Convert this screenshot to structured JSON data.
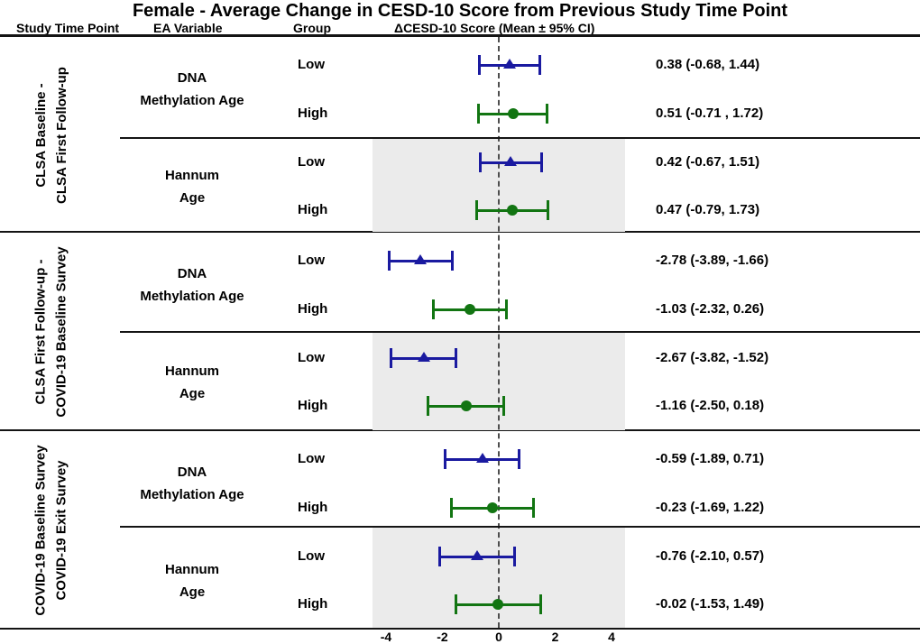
{
  "chart_data": {
    "type": "forest",
    "title": "Female - Average Change in CESD-10 Score from Previous Study Time Point",
    "column_headers": [
      "Study Time Point",
      "EA Variable",
      "Group",
      "ΔCESD-10 Score (Mean ± 95% CI)"
    ],
    "x_ticks": [
      -4,
      -2,
      0,
      2,
      4
    ],
    "xlim": [
      -4.5,
      4.5
    ],
    "zero_reference": 0,
    "grid": false,
    "marker_legend": {
      "Low": "triangle",
      "High": "circle"
    },
    "colors": {
      "low_marker": "#1a1aa0",
      "high_marker": "#127512",
      "hannum_shade": "#ebebeb"
    },
    "sections": [
      {
        "study_time_point": [
          "CLSA Baseline -",
          "CLSA First Follow-up"
        ],
        "ea_groups": [
          {
            "ea_variable": [
              "DNA",
              "Methylation Age"
            ],
            "shaded": false,
            "rows": [
              {
                "group": "Low",
                "mean": 0.38,
                "ci": [
                  -0.68,
                  1.44
                ],
                "text": "0.38 (-0.68, 1.44)"
              },
              {
                "group": "High",
                "mean": 0.51,
                "ci": [
                  -0.71,
                  1.72
                ],
                "text": "0.51 (-0.71 , 1.72)"
              }
            ]
          },
          {
            "ea_variable": [
              "Hannum",
              "Age"
            ],
            "shaded": true,
            "rows": [
              {
                "group": "Low",
                "mean": 0.42,
                "ci": [
                  -0.67,
                  1.51
                ],
                "text": "0.42 (-0.67, 1.51)"
              },
              {
                "group": "High",
                "mean": 0.47,
                "ci": [
                  -0.79,
                  1.73
                ],
                "text": "0.47 (-0.79, 1.73)"
              }
            ]
          }
        ]
      },
      {
        "study_time_point": [
          "CLSA First Follow-up -",
          "COVID-19 Baseline Survey"
        ],
        "ea_groups": [
          {
            "ea_variable": [
              "DNA",
              "Methylation Age"
            ],
            "shaded": false,
            "rows": [
              {
                "group": "Low",
                "mean": -2.78,
                "ci": [
                  -3.89,
                  -1.66
                ],
                "text": "-2.78 (-3.89, -1.66)"
              },
              {
                "group": "High",
                "mean": -1.03,
                "ci": [
                  -2.32,
                  0.26
                ],
                "text": "-1.03 (-2.32, 0.26)"
              }
            ]
          },
          {
            "ea_variable": [
              "Hannum",
              "Age"
            ],
            "shaded": true,
            "rows": [
              {
                "group": "Low",
                "mean": -2.67,
                "ci": [
                  -3.82,
                  -1.52
                ],
                "text": "-2.67 (-3.82, -1.52)"
              },
              {
                "group": "High",
                "mean": -1.16,
                "ci": [
                  -2.5,
                  0.18
                ],
                "text": "-1.16 (-2.50, 0.18)"
              }
            ]
          }
        ]
      },
      {
        "study_time_point": [
          "COVID-19 Baseline Survey",
          "COVID-19 Exit Survey"
        ],
        "ea_groups": [
          {
            "ea_variable": [
              "DNA",
              "Methylation Age"
            ],
            "shaded": false,
            "rows": [
              {
                "group": "Low",
                "mean": -0.59,
                "ci": [
                  -1.89,
                  0.71
                ],
                "text": "-0.59 (-1.89, 0.71)"
              },
              {
                "group": "High",
                "mean": -0.23,
                "ci": [
                  -1.69,
                  1.22
                ],
                "text": "-0.23 (-1.69, 1.22)"
              }
            ]
          },
          {
            "ea_variable": [
              "Hannum",
              "Age"
            ],
            "shaded": true,
            "rows": [
              {
                "group": "Low",
                "mean": -0.76,
                "ci": [
                  -2.1,
                  0.57
                ],
                "text": "-0.76 (-2.10, 0.57)"
              },
              {
                "group": "High",
                "mean": -0.02,
                "ci": [
                  -1.53,
                  1.49
                ],
                "text": "-0.02 (-1.53, 1.49)"
              }
            ]
          }
        ]
      }
    ]
  }
}
